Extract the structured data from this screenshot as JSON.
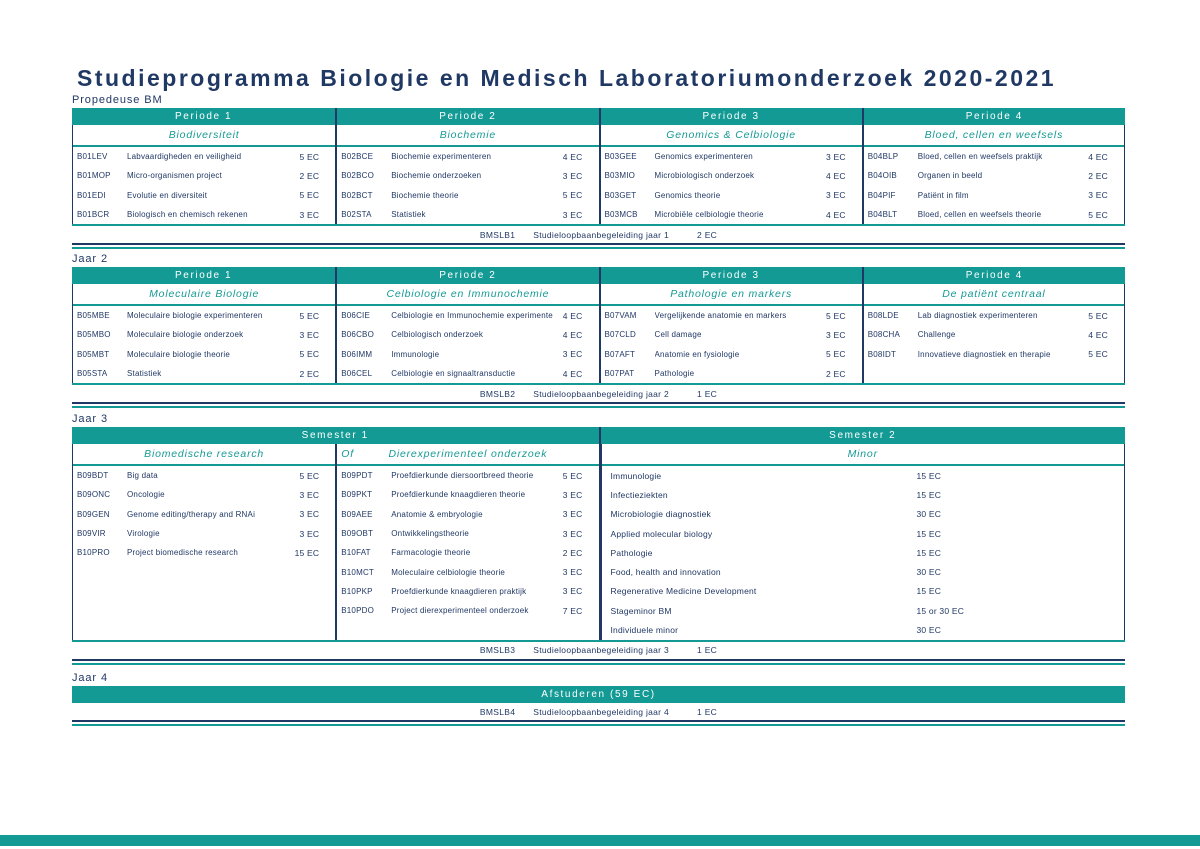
{
  "page": {
    "title": "Studieprogramma Biologie en Medisch Laboratoriumonderzoek 2020-2021"
  },
  "colors": {
    "teal": "#149a94",
    "navy": "#203864"
  },
  "tables": [
    {
      "label": "Propedeuse BM",
      "header_cells": [
        {
          "label": "Periode 1",
          "span": 1
        },
        {
          "label": "Periode 2",
          "span": 1
        },
        {
          "label": "Periode 3",
          "span": 1
        },
        {
          "label": "Periode 4",
          "span": 1
        }
      ],
      "columns": [
        {
          "subheader": "Biodiversiteit",
          "span": 1,
          "courses": [
            {
              "code": "B01LEV",
              "name": "Labvaardigheden en veiligheid",
              "ec": "5 EC"
            },
            {
              "code": "B01MOP",
              "name": "Micro-organismen project",
              "ec": "2 EC"
            },
            {
              "code": "B01EDI",
              "name": "Evolutie en diversiteit",
              "ec": "5 EC"
            },
            {
              "code": "B01BCR",
              "name": "Biologisch en chemisch rekenen",
              "ec": "3 EC"
            }
          ]
        },
        {
          "subheader": "Biochemie",
          "span": 1,
          "courses": [
            {
              "code": "B02BCE",
              "name": "Biochemie experimenteren",
              "ec": "4 EC"
            },
            {
              "code": "B02BCO",
              "name": "Biochemie onderzoeken",
              "ec": "3 EC"
            },
            {
              "code": "B02BCT",
              "name": "Biochemie theorie",
              "ec": "5 EC"
            },
            {
              "code": "B02STA",
              "name": "Statistiek",
              "ec": "3 EC"
            }
          ]
        },
        {
          "subheader": "Genomics & Celbiologie",
          "span": 1,
          "courses": [
            {
              "code": "B03GEE",
              "name": "Genomics experimenteren",
              "ec": "3 EC"
            },
            {
              "code": "B03MIO",
              "name": "Microbiologisch onderzoek",
              "ec": "4 EC"
            },
            {
              "code": "B03GET",
              "name": "Genomics theorie",
              "ec": "3 EC"
            },
            {
              "code": "B03MCB",
              "name": "Microbiële celbiologie theorie",
              "ec": "4 EC"
            }
          ]
        },
        {
          "subheader": "Bloed, cellen en weefsels",
          "span": 1,
          "courses": [
            {
              "code": "B04BLP",
              "name": "Bloed, cellen en weefsels praktijk",
              "ec": "4 EC"
            },
            {
              "code": "B04OIB",
              "name": "Organen in beeld",
              "ec": "2 EC"
            },
            {
              "code": "B04PIF",
              "name": "Patiënt in film",
              "ec": "3 EC"
            },
            {
              "code": "B04BLT",
              "name": "Bloed, cellen en weefsels theorie",
              "ec": "5 EC"
            }
          ]
        }
      ],
      "footer": {
        "code": "BMSLB1",
        "name": "Studieloopbaanbegeleiding jaar 1",
        "ec": "2 EC"
      }
    },
    {
      "label": "Jaar 2",
      "header_cells": [
        {
          "label": "Periode 1",
          "span": 1
        },
        {
          "label": "Periode 2",
          "span": 1
        },
        {
          "label": "Periode 3",
          "span": 1
        },
        {
          "label": "Periode 4",
          "span": 1
        }
      ],
      "columns": [
        {
          "subheader": "Moleculaire Biologie",
          "span": 1,
          "courses": [
            {
              "code": "B05MBE",
              "name": "Moleculaire biologie experimenteren",
              "ec": "5 EC"
            },
            {
              "code": "B05MBO",
              "name": "Moleculaire biologie onderzoek",
              "ec": "3 EC"
            },
            {
              "code": "B05MBT",
              "name": "Moleculaire biologie theorie",
              "ec": "5 EC"
            },
            {
              "code": "B05STA",
              "name": "Statistiek",
              "ec": "2 EC"
            }
          ]
        },
        {
          "subheader": "Celbiologie en Immunochemie",
          "span": 1,
          "courses": [
            {
              "code": "B06CIE",
              "name": "Celbiologie en Immunochemie experimenteren",
              "ec": "4 EC"
            },
            {
              "code": "B06CBO",
              "name": "Celbiologisch onderzoek",
              "ec": "4 EC"
            },
            {
              "code": "B06IMM",
              "name": "Immunologie",
              "ec": "3 EC"
            },
            {
              "code": "B06CEL",
              "name": "Celbiologie en signaaltransductie",
              "ec": "4 EC"
            }
          ]
        },
        {
          "subheader": "Pathologie en markers",
          "span": 1,
          "courses": [
            {
              "code": "B07VAM",
              "name": "Vergelijkende anatomie en markers",
              "ec": "5 EC"
            },
            {
              "code": "B07CLD",
              "name": "Cell damage",
              "ec": "3 EC"
            },
            {
              "code": "B07AFT",
              "name": "Anatomie en fysiologie",
              "ec": "5 EC"
            },
            {
              "code": "B07PAT",
              "name": "Pathologie",
              "ec": "2 EC"
            }
          ]
        },
        {
          "subheader": "De patiënt centraal",
          "span": 1,
          "courses": [
            {
              "code": "B08LDE",
              "name": "Lab diagnostiek experimenteren",
              "ec": "5 EC"
            },
            {
              "code": "B08CHA",
              "name": "Challenge",
              "ec": "4 EC"
            },
            {
              "code": "B08IDT",
              "name": "Innovatieve diagnostiek en therapie",
              "ec": "5 EC"
            }
          ]
        }
      ],
      "footer": {
        "code": "BMSLB2",
        "name": "Studieloopbaanbegeleiding jaar 2",
        "ec": "1 EC"
      }
    },
    {
      "label": "Jaar 3",
      "header_cells": [
        {
          "label": "Semester 1",
          "span": 2
        },
        {
          "label": "Semester 2",
          "span": 2
        }
      ],
      "columns": [
        {
          "subheader": "Biomedische research",
          "span": 1,
          "courses": [
            {
              "code": "B09BDT",
              "name": "Big data",
              "ec": "5 EC"
            },
            {
              "code": "B09ONC",
              "name": "Oncologie",
              "ec": "3 EC"
            },
            {
              "code": "B09GEN",
              "name": "Genome editing/therapy and RNAi",
              "ec": "3 EC"
            },
            {
              "code": "B09VIR",
              "name": "Virologie",
              "ec": "3 EC"
            },
            {
              "code": "B10PRO",
              "name": "Project biomedische research",
              "ec": "15 EC"
            }
          ]
        },
        {
          "subheader": "Dierexperimenteel onderzoek",
          "prefix": "Of",
          "span": 1,
          "courses": [
            {
              "code": "B09PDT",
              "name": "Proefdierkunde diersoortbreed theorie",
              "ec": "5 EC"
            },
            {
              "code": "B09PKT",
              "name": "Proefdierkunde knaagdieren theorie",
              "ec": "3 EC"
            },
            {
              "code": "B09AEE",
              "name": "Anatomie & embryologie",
              "ec": "3 EC"
            },
            {
              "code": "B09OBT",
              "name": "Ontwikkelingstheorie",
              "ec": "3 EC"
            },
            {
              "code": "B10FAT",
              "name": "Farmacologie theorie",
              "ec": "2 EC"
            },
            {
              "code": "B10MCT",
              "name": "Moleculaire celbiologie theorie",
              "ec": "3 EC"
            },
            {
              "code": "B10PKP",
              "name": "Proefdierkunde knaagdieren praktijk",
              "ec": "3 EC"
            },
            {
              "code": "B10PDO",
              "name": "Project dierexperimenteel onderzoek",
              "ec": "7 EC"
            }
          ]
        },
        {
          "subheader": "Minor",
          "span": 2,
          "minor": true,
          "courses": [
            {
              "name": "Immunologie",
              "ec": "15 EC"
            },
            {
              "name": "Infectieziekten",
              "ec": "15 EC"
            },
            {
              "name": "Microbiologie diagnostiek",
              "ec": "30 EC"
            },
            {
              "name": "Applied molecular biology",
              "ec": "15 EC"
            },
            {
              "name": "Pathologie",
              "ec": "15 EC"
            },
            {
              "name": "Food, health and innovation",
              "ec": "30 EC"
            },
            {
              "name": "Regenerative Medicine Development",
              "ec": "15 EC"
            },
            {
              "name": "Stageminor BM",
              "ec": "15 or 30 EC"
            },
            {
              "name": "Individuele minor",
              "ec": "30 EC"
            }
          ]
        }
      ],
      "footer": {
        "code": "BMSLB3",
        "name": "Studieloopbaanbegeleiding jaar 3",
        "ec": "1 EC"
      }
    },
    {
      "label": "Jaar 4",
      "banner": "Afstuderen (59 EC)",
      "footer": {
        "code": "BMSLB4",
        "name": "Studieloopbaanbegeleiding jaar 4",
        "ec": "1 EC"
      }
    }
  ]
}
